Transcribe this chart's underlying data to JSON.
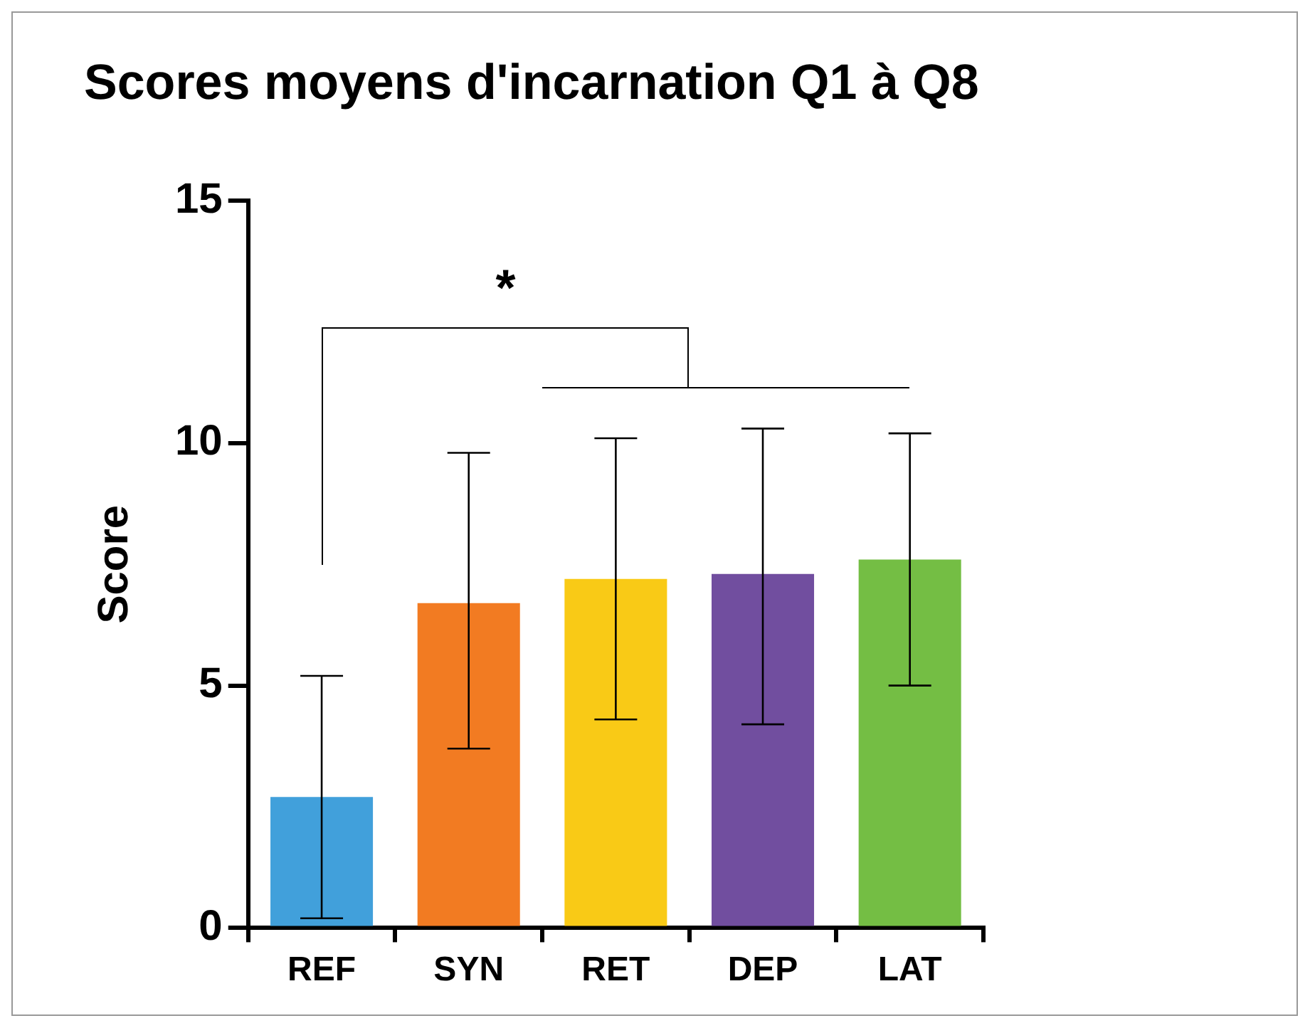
{
  "chart_data": {
    "type": "bar",
    "title": "Scores moyens d'incarnation Q1 à Q8",
    "ylabel": "Score",
    "categories": [
      "REF",
      "SYN",
      "RET",
      "DEP",
      "LAT"
    ],
    "values": [
      2.7,
      6.7,
      7.2,
      7.3,
      7.6
    ],
    "colors": [
      "#41a0db",
      "#f27b22",
      "#f9ca16",
      "#714e9f",
      "#74be44"
    ],
    "errors": [
      [
        0.2,
        5.2
      ],
      [
        3.7,
        9.8
      ],
      [
        4.3,
        10.1
      ],
      [
        4.2,
        10.3
      ],
      [
        5.0,
        10.2
      ]
    ],
    "ylim": [
      0,
      15
    ],
    "yticks": [
      0,
      5,
      10,
      15
    ],
    "annotations": [
      "*"
    ],
    "grid": false,
    "legend": false
  }
}
